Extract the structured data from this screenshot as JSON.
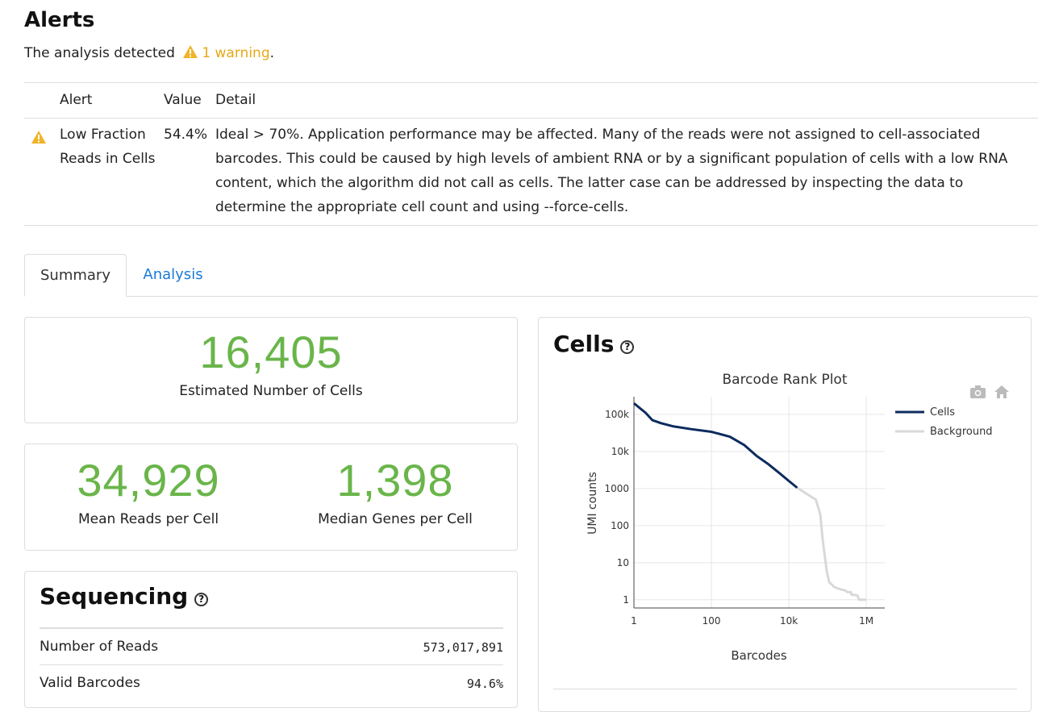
{
  "alerts": {
    "title": "Alerts",
    "summary_prefix": "The analysis detected",
    "warning_link": "1 warning",
    "summary_suffix": ".",
    "headers": {
      "alert": "Alert",
      "value": "Value",
      "detail": "Detail"
    },
    "rows": [
      {
        "icon": "warning-icon",
        "alert": "Low Fraction Reads in Cells",
        "value": "54.4%",
        "detail": "Ideal > 70%. Application performance may be affected. Many of the reads were not assigned to cell-associated barcodes. This could be caused by high levels of ambient RNA or by a significant population of cells with a low RNA content, which the algorithm did not call as cells. The latter case can be addressed by inspecting the data to determine the appropriate cell count and using --force-cells."
      }
    ]
  },
  "tabs": [
    {
      "label": "Summary",
      "active": true
    },
    {
      "label": "Analysis",
      "active": false
    }
  ],
  "metrics": {
    "estimated_cells": {
      "value": "16,405",
      "label": "Estimated Number of Cells"
    },
    "mean_reads": {
      "value": "34,929",
      "label": "Mean Reads per Cell"
    },
    "median_genes": {
      "value": "1,398",
      "label": "Median Genes per Cell"
    }
  },
  "sequencing": {
    "title": "Sequencing",
    "rows": [
      {
        "label": "Number of Reads",
        "value": "573,017,891"
      },
      {
        "label": "Valid Barcodes",
        "value": "94.6%"
      }
    ]
  },
  "cells_panel": {
    "title": "Cells",
    "toolbar_icons": [
      "camera-icon",
      "home-icon"
    ]
  },
  "colors": {
    "metric_green": "#6ab54a",
    "warning": "#e6a817",
    "link": "#1a7ad9",
    "cells_line": "#0d2b5e",
    "background_line": "#d8d8d8"
  },
  "chart_data": {
    "type": "line",
    "title": "Barcode Rank Plot",
    "xlabel": "Barcodes",
    "ylabel": "UMI counts",
    "x_scale": "log",
    "y_scale": "log",
    "xlim": [
      1,
      3000000
    ],
    "ylim": [
      0.6,
      300000
    ],
    "x_ticks": [
      {
        "value": 1,
        "label": "1"
      },
      {
        "value": 100,
        "label": "100"
      },
      {
        "value": 10000,
        "label": "10k"
      },
      {
        "value": 1000000,
        "label": "1M"
      }
    ],
    "y_ticks": [
      {
        "value": 1,
        "label": "1"
      },
      {
        "value": 10,
        "label": "10"
      },
      {
        "value": 100,
        "label": "100"
      },
      {
        "value": 1000,
        "label": "1000"
      },
      {
        "value": 10000,
        "label": "10k"
      },
      {
        "value": 100000,
        "label": "100k"
      }
    ],
    "grid": true,
    "legend_position": "top-right",
    "series": [
      {
        "name": "Cells",
        "color": "#0d2b5e",
        "x": [
          1,
          2,
          3,
          5,
          10,
          30,
          100,
          300,
          700,
          1500,
          3000,
          6000,
          10000,
          16405
        ],
        "y": [
          200000,
          110000,
          70000,
          58000,
          48000,
          40000,
          34000,
          25000,
          15000,
          7500,
          4500,
          2500,
          1600,
          1050
        ]
      },
      {
        "name": "Background",
        "color": "#d8d8d8",
        "x": [
          16405,
          30000,
          50000,
          65000,
          75000,
          85000,
          95000,
          110000,
          150000,
          220000,
          280000,
          330000,
          400000,
          420000,
          500000,
          600000,
          650000,
          700000,
          1000000
        ],
        "y": [
          1050,
          700,
          500,
          200,
          40,
          15,
          6,
          3,
          2.2,
          1.9,
          1.8,
          1.6,
          1.6,
          1.35,
          1.35,
          1.3,
          1,
          1,
          1
        ]
      }
    ]
  }
}
